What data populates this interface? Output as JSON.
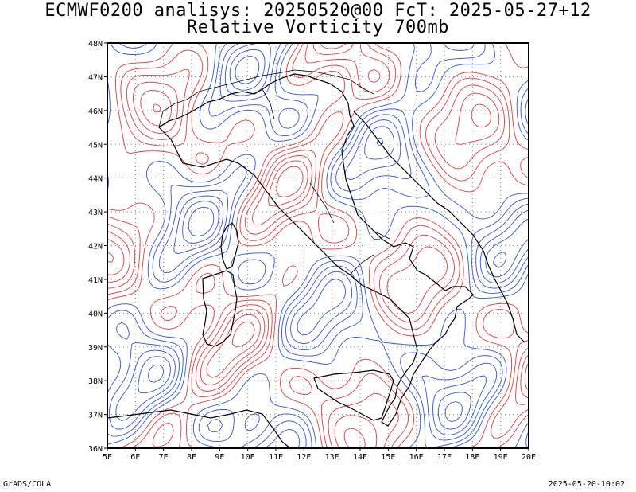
{
  "header": {
    "title_line1": "ECMWF0200 analisys: 20250520@00 FcT: 2025-05-27+12",
    "title_line2": "Relative Vorticity 700mb"
  },
  "map": {
    "projection": "lat-lon",
    "lon_range": [
      5,
      20
    ],
    "lat_range": [
      36,
      48
    ],
    "lon_ticks": [
      "5E",
      "6E",
      "7E",
      "8E",
      "9E",
      "10E",
      "11E",
      "12E",
      "13E",
      "14E",
      "15E",
      "16E",
      "17E",
      "18E",
      "19E",
      "20E"
    ],
    "lat_ticks": [
      "36N",
      "37N",
      "38N",
      "39N",
      "40N",
      "41N",
      "42N",
      "43N",
      "44N",
      "45N",
      "46N",
      "47N",
      "48N"
    ],
    "grid": "dotted",
    "positive_contour_color": "#e8393a",
    "negative_contour_color": "#2f54e0",
    "zero_contour_color": "#b04080",
    "coastline_color": "#000000"
  },
  "footer": {
    "left": "GrADS/COLA",
    "right": "2025-05-20-10:02"
  }
}
